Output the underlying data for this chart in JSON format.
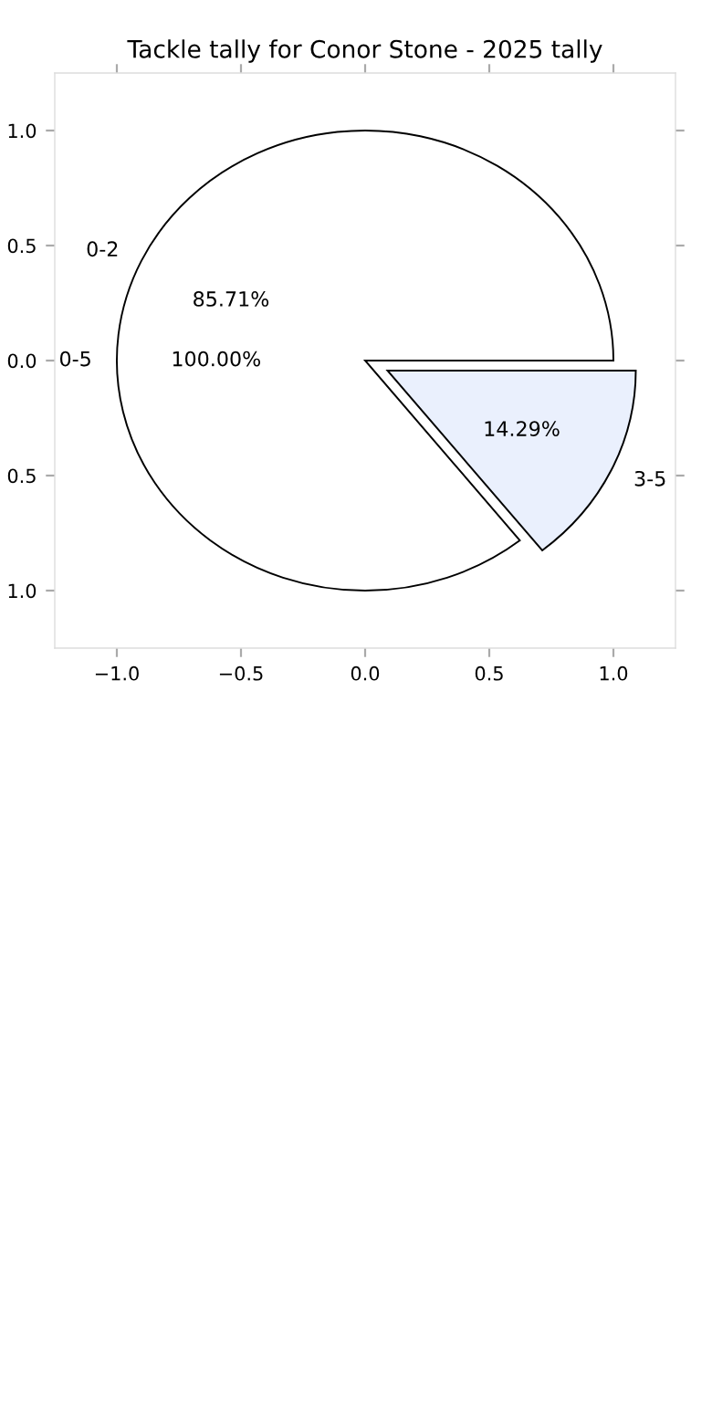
{
  "chart_data": [
    {
      "type": "pie",
      "title": "Tackle tally for Conor Stone - 2025 tally",
      "categories": [
        "0-2",
        "3-5"
      ],
      "values": [
        85.71,
        14.29
      ],
      "colors": [
        "#ffffff",
        "#eaf0fd"
      ],
      "value_labels": [
        "85.71%",
        "14.29%"
      ],
      "annotations": [
        "0-5",
        "100.00%"
      ]
    },
    {
      "type": "scatter",
      "xlim": [
        -1.25,
        1.25
      ],
      "ylim": [
        -1.25,
        1.25
      ],
      "xticks": [
        {
          "value": -1.0,
          "label": "−1.0"
        },
        {
          "value": -0.5,
          "label": "−0.5"
        },
        {
          "value": 0.0,
          "label": "0.0"
        },
        {
          "value": 0.5,
          "label": "0.5"
        },
        {
          "value": 1.0,
          "label": "1.0"
        }
      ],
      "yticks": [
        {
          "value": -1.0,
          "label": "1.0"
        },
        {
          "value": -0.5,
          "label": "0.5"
        },
        {
          "value": 0.0,
          "label": "0.0"
        },
        {
          "value": 0.5,
          "label": "0.5"
        },
        {
          "value": 1.0,
          "label": "1.0"
        }
      ]
    }
  ]
}
